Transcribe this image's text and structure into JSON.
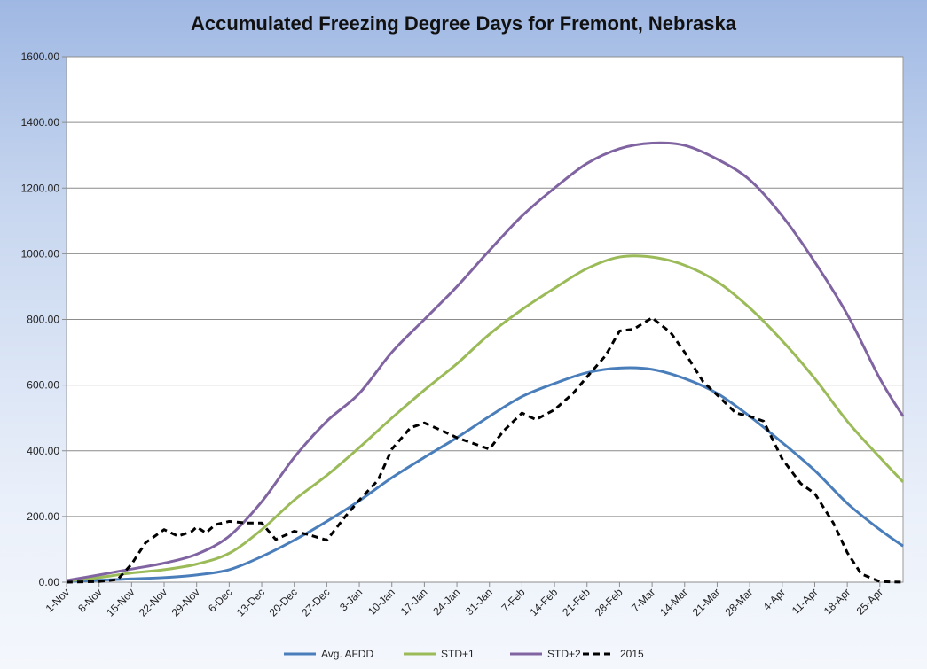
{
  "chart_data": {
    "type": "line",
    "title": "Accumulated Freezing Degree Days for Fremont, Nebraska",
    "xlabel": "",
    "ylabel": "",
    "ylim": [
      0,
      1600
    ],
    "yticks": [
      "0.00",
      "200.00",
      "400.00",
      "600.00",
      "800.00",
      "1000.00",
      "1200.00",
      "1400.00",
      "1600.00"
    ],
    "xtick_labels": [
      "1-Nov",
      "8-Nov",
      "15-Nov",
      "22-Nov",
      "29-Nov",
      "6-Dec",
      "13-Dec",
      "20-Dec",
      "27-Dec",
      "3-Jan",
      "10-Jan",
      "17-Jan",
      "24-Jan",
      "31-Jan",
      "7-Feb",
      "14-Feb",
      "21-Feb",
      "28-Feb",
      "7-Mar",
      "14-Mar",
      "21-Mar",
      "28-Mar",
      "4-Apr",
      "11-Apr",
      "18-Apr",
      "25-Apr"
    ],
    "x_start": "1-Nov",
    "x_end": "30-Apr",
    "grid": true,
    "legend_position": "bottom",
    "series": [
      {
        "name": "Avg. AFDD",
        "color": "#4a7ebb",
        "dash": "solid",
        "points": [
          [
            "1-Nov",
            2
          ],
          [
            "8-Nov",
            6
          ],
          [
            "15-Nov",
            10
          ],
          [
            "22-Nov",
            14
          ],
          [
            "29-Nov",
            22
          ],
          [
            "6-Dec",
            38
          ],
          [
            "13-Dec",
            78
          ],
          [
            "20-Dec",
            128
          ],
          [
            "27-Dec",
            185
          ],
          [
            "3-Jan",
            248
          ],
          [
            "10-Jan",
            318
          ],
          [
            "17-Jan",
            380
          ],
          [
            "24-Jan",
            440
          ],
          [
            "31-Jan",
            505
          ],
          [
            "7-Feb",
            565
          ],
          [
            "14-Feb",
            605
          ],
          [
            "21-Feb",
            638
          ],
          [
            "28-Feb",
            652
          ],
          [
            "7-Mar",
            648
          ],
          [
            "14-Mar",
            620
          ],
          [
            "21-Mar",
            575
          ],
          [
            "28-Mar",
            505
          ],
          [
            "4-Apr",
            425
          ],
          [
            "11-Apr",
            340
          ],
          [
            "18-Apr",
            240
          ],
          [
            "25-Apr",
            160
          ],
          [
            "30-Apr",
            110
          ]
        ]
      },
      {
        "name": "STD+1",
        "color": "#9bbb59",
        "dash": "solid",
        "points": [
          [
            "1-Nov",
            3
          ],
          [
            "8-Nov",
            14
          ],
          [
            "15-Nov",
            28
          ],
          [
            "22-Nov",
            38
          ],
          [
            "29-Nov",
            55
          ],
          [
            "6-Dec",
            88
          ],
          [
            "13-Dec",
            160
          ],
          [
            "20-Dec",
            250
          ],
          [
            "27-Dec",
            325
          ],
          [
            "3-Jan",
            410
          ],
          [
            "10-Jan",
            500
          ],
          [
            "17-Jan",
            585
          ],
          [
            "24-Jan",
            665
          ],
          [
            "31-Jan",
            755
          ],
          [
            "7-Feb",
            830
          ],
          [
            "14-Feb",
            895
          ],
          [
            "21-Feb",
            955
          ],
          [
            "28-Feb",
            990
          ],
          [
            "7-Mar",
            990
          ],
          [
            "14-Mar",
            965
          ],
          [
            "21-Mar",
            915
          ],
          [
            "28-Mar",
            835
          ],
          [
            "4-Apr",
            735
          ],
          [
            "11-Apr",
            620
          ],
          [
            "18-Apr",
            490
          ],
          [
            "25-Apr",
            380
          ],
          [
            "30-Apr",
            305
          ]
        ]
      },
      {
        "name": "STD+2",
        "color": "#8064a2",
        "dash": "solid",
        "points": [
          [
            "1-Nov",
            5
          ],
          [
            "8-Nov",
            22
          ],
          [
            "15-Nov",
            40
          ],
          [
            "22-Nov",
            58
          ],
          [
            "29-Nov",
            85
          ],
          [
            "6-Dec",
            140
          ],
          [
            "13-Dec",
            245
          ],
          [
            "20-Dec",
            380
          ],
          [
            "27-Dec",
            490
          ],
          [
            "3-Jan",
            575
          ],
          [
            "10-Jan",
            700
          ],
          [
            "17-Jan",
            800
          ],
          [
            "24-Jan",
            900
          ],
          [
            "31-Jan",
            1010
          ],
          [
            "7-Feb",
            1115
          ],
          [
            "14-Feb",
            1200
          ],
          [
            "21-Feb",
            1275
          ],
          [
            "28-Feb",
            1320
          ],
          [
            "7-Mar",
            1337
          ],
          [
            "14-Mar",
            1330
          ],
          [
            "21-Mar",
            1288
          ],
          [
            "28-Mar",
            1225
          ],
          [
            "4-Apr",
            1115
          ],
          [
            "11-Apr",
            975
          ],
          [
            "18-Apr",
            815
          ],
          [
            "25-Apr",
            620
          ],
          [
            "30-Apr",
            505
          ]
        ]
      },
      {
        "name": "2015",
        "color": "#000000",
        "dash": "dashed",
        "points": [
          [
            "1-Nov",
            0
          ],
          [
            "8-Nov",
            2
          ],
          [
            "12-Nov",
            8
          ],
          [
            "15-Nov",
            55
          ],
          [
            "18-Nov",
            120
          ],
          [
            "22-Nov",
            160
          ],
          [
            "25-Nov",
            140
          ],
          [
            "28-Nov",
            155
          ],
          [
            "29-Nov",
            168
          ],
          [
            "1-Dec",
            150
          ],
          [
            "3-Dec",
            175
          ],
          [
            "6-Dec",
            185
          ],
          [
            "10-Dec",
            180
          ],
          [
            "13-Dec",
            180
          ],
          [
            "16-Dec",
            130
          ],
          [
            "20-Dec",
            155
          ],
          [
            "23-Dec",
            145
          ],
          [
            "27-Dec",
            128
          ],
          [
            "31-Dec",
            200
          ],
          [
            "3-Jan",
            250
          ],
          [
            "7-Jan",
            310
          ],
          [
            "10-Jan",
            405
          ],
          [
            "14-Jan",
            470
          ],
          [
            "17-Jan",
            485
          ],
          [
            "21-Jan",
            460
          ],
          [
            "24-Jan",
            440
          ],
          [
            "28-Jan",
            420
          ],
          [
            "31-Jan",
            405
          ],
          [
            "3-Feb",
            460
          ],
          [
            "7-Feb",
            515
          ],
          [
            "10-Feb",
            495
          ],
          [
            "14-Feb",
            525
          ],
          [
            "18-Feb",
            575
          ],
          [
            "21-Feb",
            625
          ],
          [
            "25-Feb",
            690
          ],
          [
            "28-Feb",
            765
          ],
          [
            "3-Mar",
            770
          ],
          [
            "7-Mar",
            805
          ],
          [
            "11-Mar",
            760
          ],
          [
            "14-Mar",
            700
          ],
          [
            "18-Mar",
            610
          ],
          [
            "21-Mar",
            570
          ],
          [
            "25-Mar",
            515
          ],
          [
            "28-Mar",
            505
          ],
          [
            "31-Mar",
            490
          ],
          [
            "4-Apr",
            375
          ],
          [
            "8-Apr",
            300
          ],
          [
            "11-Apr",
            270
          ],
          [
            "15-Apr",
            180
          ],
          [
            "18-Apr",
            90
          ],
          [
            "21-Apr",
            25
          ],
          [
            "25-Apr",
            2
          ],
          [
            "30-Apr",
            0
          ]
        ]
      }
    ]
  }
}
